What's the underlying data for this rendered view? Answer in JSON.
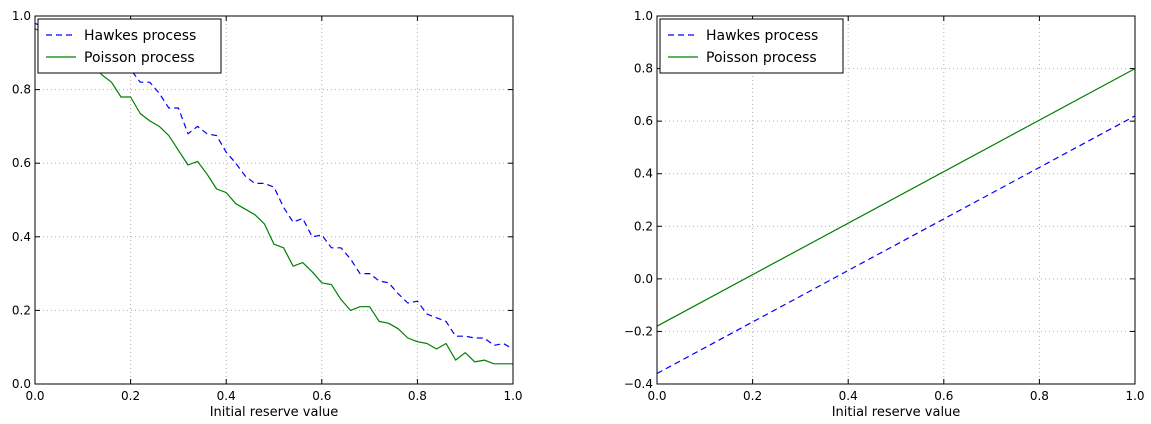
{
  "chart_data": [
    {
      "type": "line",
      "title": "",
      "xlabel": "Initial reserve value",
      "ylabel": "",
      "xlim": [
        0.0,
        1.0
      ],
      "ylim": [
        0.0,
        1.0
      ],
      "xticks": [
        "0.0",
        "0.2",
        "0.4",
        "0.6",
        "0.8",
        "1.0"
      ],
      "yticks": [
        "0.0",
        "0.2",
        "0.4",
        "0.6",
        "0.8",
        "1.0"
      ],
      "grid": true,
      "legend_position": "top-left",
      "series": [
        {
          "name": "Hawkes process",
          "style": "dashed",
          "color": "#0000ff",
          "x": [
            0.0,
            0.02,
            0.04,
            0.06,
            0.08,
            0.1,
            0.12,
            0.14,
            0.16,
            0.18,
            0.2,
            0.22,
            0.24,
            0.26,
            0.28,
            0.3,
            0.32,
            0.34,
            0.36,
            0.38,
            0.4,
            0.42,
            0.44,
            0.46,
            0.48,
            0.5,
            0.52,
            0.54,
            0.56,
            0.58,
            0.6,
            0.62,
            0.64,
            0.66,
            0.68,
            0.7,
            0.72,
            0.74,
            0.76,
            0.78,
            0.8,
            0.82,
            0.84,
            0.86,
            0.88,
            0.9,
            0.92,
            0.94,
            0.96,
            0.98,
            1.0
          ],
          "y": [
            0.98,
            0.97,
            0.96,
            0.95,
            0.93,
            0.92,
            0.91,
            0.9,
            0.88,
            0.87,
            0.855,
            0.82,
            0.82,
            0.79,
            0.75,
            0.75,
            0.68,
            0.7,
            0.68,
            0.675,
            0.63,
            0.6,
            0.565,
            0.545,
            0.545,
            0.535,
            0.48,
            0.44,
            0.45,
            0.4,
            0.405,
            0.37,
            0.37,
            0.34,
            0.3,
            0.3,
            0.28,
            0.275,
            0.245,
            0.22,
            0.225,
            0.19,
            0.18,
            0.17,
            0.13,
            0.13,
            0.125,
            0.125,
            0.105,
            0.11,
            0.095
          ]
        },
        {
          "name": "Poisson process",
          "style": "solid",
          "color": "#008000",
          "x": [
            0.0,
            0.02,
            0.04,
            0.06,
            0.08,
            0.1,
            0.12,
            0.14,
            0.16,
            0.18,
            0.2,
            0.22,
            0.24,
            0.26,
            0.28,
            0.3,
            0.32,
            0.34,
            0.36,
            0.38,
            0.4,
            0.42,
            0.44,
            0.46,
            0.48,
            0.5,
            0.52,
            0.54,
            0.56,
            0.58,
            0.6,
            0.62,
            0.64,
            0.66,
            0.68,
            0.7,
            0.72,
            0.74,
            0.76,
            0.78,
            0.8,
            0.82,
            0.84,
            0.86,
            0.88,
            0.9,
            0.92,
            0.94,
            0.96,
            0.98,
            1.0
          ],
          "y": [
            0.965,
            0.955,
            0.94,
            0.93,
            0.91,
            0.89,
            0.87,
            0.84,
            0.82,
            0.78,
            0.78,
            0.735,
            0.715,
            0.7,
            0.675,
            0.635,
            0.595,
            0.605,
            0.57,
            0.53,
            0.52,
            0.49,
            0.475,
            0.46,
            0.435,
            0.38,
            0.37,
            0.32,
            0.33,
            0.305,
            0.275,
            0.27,
            0.23,
            0.2,
            0.21,
            0.21,
            0.17,
            0.165,
            0.15,
            0.125,
            0.115,
            0.11,
            0.095,
            0.11,
            0.065,
            0.085,
            0.06,
            0.065,
            0.055,
            0.055,
            0.055
          ]
        }
      ]
    },
    {
      "type": "line",
      "title": "",
      "xlabel": "Initial reserve value",
      "ylabel": "",
      "xlim": [
        0.0,
        1.0
      ],
      "ylim": [
        -0.4,
        1.0
      ],
      "xticks": [
        "0.0",
        "0.2",
        "0.4",
        "0.6",
        "0.8",
        "1.0"
      ],
      "yticks": [
        "−0.4",
        "−0.2",
        "0.0",
        "0.2",
        "0.4",
        "0.6",
        "0.8",
        "1.0"
      ],
      "grid": true,
      "legend_position": "top-left",
      "series": [
        {
          "name": "Hawkes process",
          "style": "dashed",
          "color": "#0000ff",
          "x": [
            0.0,
            1.0
          ],
          "y": [
            -0.36,
            0.62
          ]
        },
        {
          "name": "Poisson process",
          "style": "solid",
          "color": "#008000",
          "x": [
            0.0,
            1.0
          ],
          "y": [
            -0.18,
            0.8
          ]
        }
      ]
    }
  ]
}
